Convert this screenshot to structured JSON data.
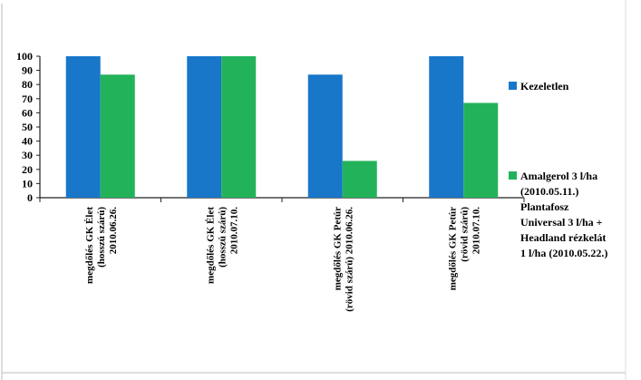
{
  "chart_data": {
    "type": "bar",
    "categories": [
      [
        "megdőlés GK Élet",
        "(hosszú szárú)",
        "2010.06.26."
      ],
      [
        "megdőlés GK Élet",
        "(hosszú szárú)",
        "2010.07.10."
      ],
      [
        "megdőlés GK Petúr",
        "(rövid szárú) 2010.06.26."
      ],
      [
        "megdőlés GK Petúr",
        "(rövid  szárú)",
        "2010.07.10."
      ]
    ],
    "series": [
      {
        "name": "Kezeletlen",
        "values": [
          100,
          100,
          87,
          100
        ],
        "color": "#1877c9"
      },
      {
        "name": [
          "Amalgerol 3 l/ha",
          "(2010.05.11.)",
          "Plantafosz",
          "Universal 3 l/ha  +",
          "Headland rézkelát",
          "1 l/ha (2010.05.22.)"
        ],
        "values": [
          87,
          100,
          26,
          67
        ],
        "color": "#22b35a"
      }
    ],
    "ylim": [
      0,
      100
    ],
    "yticks": [
      0,
      10,
      20,
      30,
      40,
      50,
      60,
      70,
      80,
      90,
      100
    ],
    "grid": false,
    "legend": "right",
    "title": "",
    "xlabel": "",
    "ylabel": ""
  }
}
